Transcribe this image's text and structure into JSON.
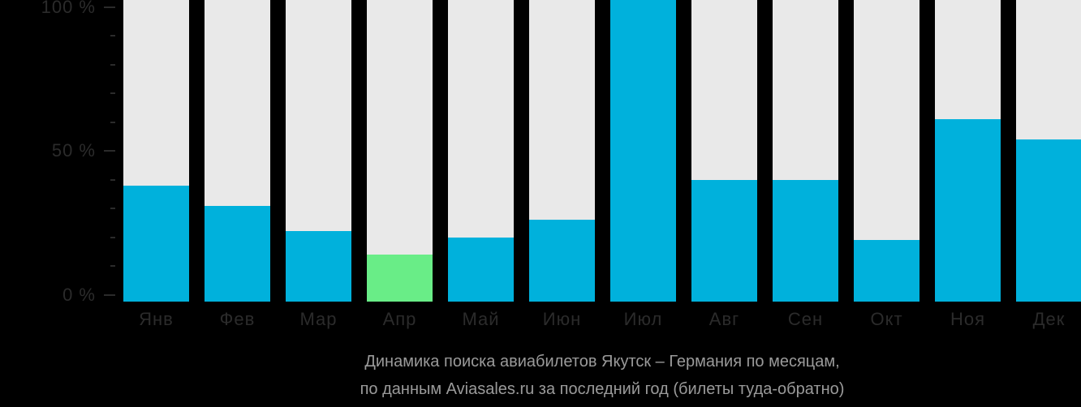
{
  "chart_data": {
    "type": "bar",
    "title": "Динамика поиска авиабилетов Якутск – Германия по месяцам,",
    "subtitle": "по данным Aviasales.ru за последний год (билеты туда-обратно)",
    "categories": [
      "Янв",
      "Фев",
      "Мар",
      "Апр",
      "Май",
      "Июн",
      "Июл",
      "Авг",
      "Сен",
      "Окт",
      "Ноя",
      "Дек"
    ],
    "values": [
      38,
      31,
      22,
      14,
      20,
      26,
      100,
      40,
      40,
      19,
      61,
      54
    ],
    "unit": "%",
    "xlabel": "",
    "ylabel": "",
    "ylim": [
      0,
      100
    ],
    "grid": false,
    "legend": false,
    "highlight_index": 3,
    "y_axis": {
      "major_ticks": [
        {
          "value": 100,
          "label": "100 %"
        },
        {
          "value": 50,
          "label": "50 %"
        },
        {
          "value": 0,
          "label": "0 %"
        }
      ],
      "minor_ticks": [
        90,
        80,
        70,
        60,
        40,
        30,
        20,
        10
      ]
    },
    "colors": {
      "bar_default": "#00b1dc",
      "bar_highlight": "#69ed87",
      "bar_background": "#e9e9e9",
      "axis_text": "#2b2b2b",
      "caption_text": "#9a9a9a",
      "page_background": "#000000"
    }
  }
}
